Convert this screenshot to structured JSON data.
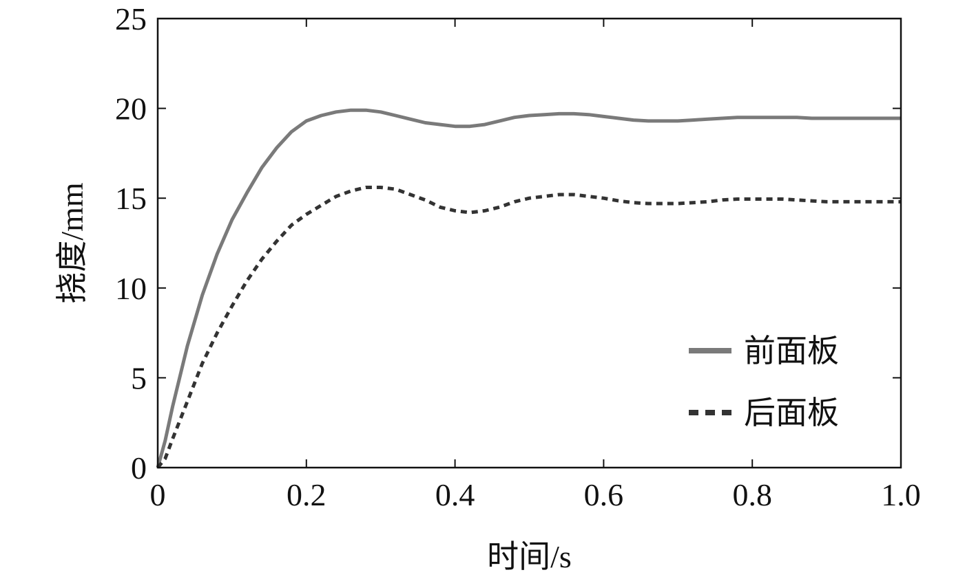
{
  "chart_data": {
    "type": "line",
    "xlabel": "时间/s",
    "ylabel": "挠度/mm",
    "xlim": [
      0,
      1.0
    ],
    "ylim": [
      0,
      25
    ],
    "x_ticks": [
      "0",
      "0.2",
      "0.4",
      "0.6",
      "0.8",
      "1.0"
    ],
    "y_ticks": [
      "0",
      "5",
      "10",
      "15",
      "20",
      "25"
    ],
    "grid": false,
    "legend_position": "bottom-right",
    "series": [
      {
        "name": "前面板",
        "style": "solid",
        "color": "#7a7a7a",
        "x": [
          0,
          0.01,
          0.02,
          0.04,
          0.06,
          0.08,
          0.1,
          0.12,
          0.14,
          0.16,
          0.18,
          0.2,
          0.22,
          0.24,
          0.26,
          0.28,
          0.3,
          0.32,
          0.34,
          0.36,
          0.38,
          0.4,
          0.42,
          0.44,
          0.46,
          0.48,
          0.5,
          0.52,
          0.54,
          0.56,
          0.58,
          0.6,
          0.62,
          0.64,
          0.66,
          0.68,
          0.7,
          0.72,
          0.74,
          0.76,
          0.78,
          0.8,
          0.82,
          0.84,
          0.86,
          0.88,
          0.9,
          0.92,
          0.94,
          0.96,
          0.98,
          1.0
        ],
        "y": [
          0,
          1.5,
          3.4,
          6.8,
          9.6,
          11.9,
          13.8,
          15.3,
          16.7,
          17.8,
          18.7,
          19.3,
          19.6,
          19.8,
          19.9,
          19.9,
          19.8,
          19.6,
          19.4,
          19.2,
          19.1,
          19.0,
          19.0,
          19.1,
          19.3,
          19.5,
          19.6,
          19.65,
          19.7,
          19.7,
          19.65,
          19.55,
          19.45,
          19.35,
          19.3,
          19.3,
          19.3,
          19.35,
          19.4,
          19.45,
          19.5,
          19.5,
          19.5,
          19.5,
          19.5,
          19.45,
          19.45,
          19.45,
          19.45,
          19.45,
          19.45,
          19.45
        ]
      },
      {
        "name": "后面板",
        "style": "dashed",
        "color": "#333333",
        "x": [
          0,
          0.01,
          0.02,
          0.04,
          0.06,
          0.08,
          0.1,
          0.12,
          0.14,
          0.16,
          0.18,
          0.2,
          0.22,
          0.24,
          0.26,
          0.28,
          0.3,
          0.32,
          0.34,
          0.36,
          0.38,
          0.4,
          0.42,
          0.44,
          0.46,
          0.48,
          0.5,
          0.52,
          0.54,
          0.56,
          0.58,
          0.6,
          0.62,
          0.64,
          0.66,
          0.68,
          0.7,
          0.72,
          0.74,
          0.76,
          0.78,
          0.8,
          0.82,
          0.84,
          0.86,
          0.88,
          0.9,
          0.92,
          0.94,
          0.96,
          0.98,
          1.0
        ],
        "y": [
          0,
          0.5,
          1.6,
          3.7,
          5.8,
          7.5,
          9.0,
          10.4,
          11.6,
          12.6,
          13.5,
          14.1,
          14.6,
          15.1,
          15.4,
          15.6,
          15.6,
          15.5,
          15.2,
          14.9,
          14.5,
          14.3,
          14.2,
          14.3,
          14.5,
          14.8,
          15.0,
          15.1,
          15.2,
          15.2,
          15.1,
          15.0,
          14.85,
          14.75,
          14.7,
          14.7,
          14.7,
          14.75,
          14.8,
          14.9,
          14.95,
          14.95,
          14.95,
          14.95,
          14.9,
          14.85,
          14.8,
          14.8,
          14.8,
          14.8,
          14.8,
          14.8
        ]
      }
    ]
  }
}
